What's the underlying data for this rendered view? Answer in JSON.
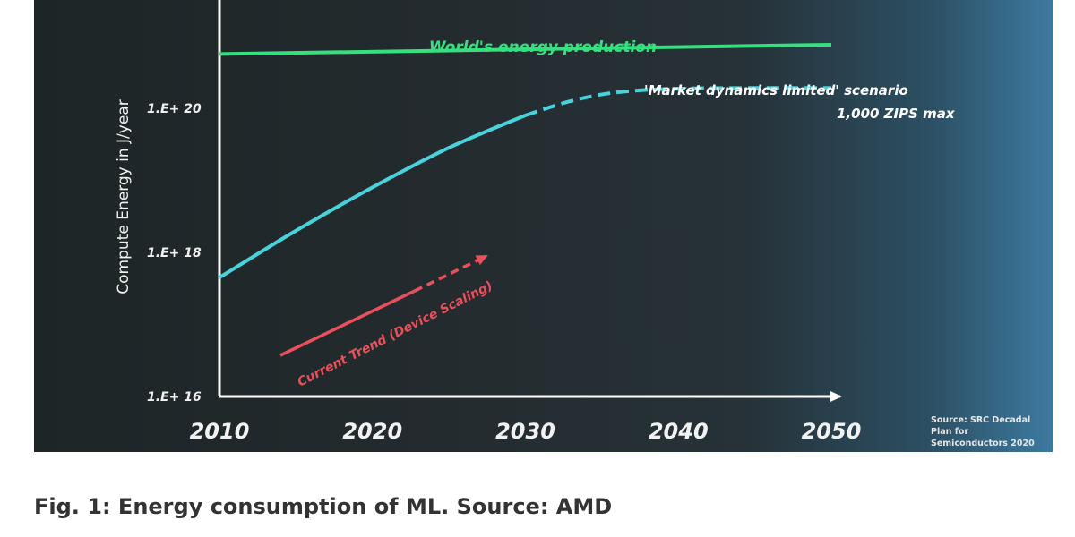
{
  "caption": "Fig. 1: Energy consumption of ML. Source: AMD",
  "chart_data": {
    "type": "line",
    "title": "",
    "xlabel": "",
    "ylabel": "Compute Energy in J/year",
    "x_ticks": [
      "2010",
      "2020",
      "2030",
      "2040",
      "2050"
    ],
    "y_ticks": [
      {
        "value": 16,
        "label": "1.E+ 16"
      },
      {
        "value": 18,
        "label": "1.E+ 18"
      },
      {
        "value": 20,
        "label": "1.E+ 20"
      }
    ],
    "xlim": [
      2010,
      2050
    ],
    "ylim_log10": [
      16,
      21.5
    ],
    "y_scale": "log",
    "grid": false,
    "series": [
      {
        "name": "World's energy production",
        "color": "#35e07e",
        "style": "solid",
        "x": [
          2010,
          2050
        ],
        "y_log10": [
          20.75,
          20.88
        ]
      },
      {
        "name": "",
        "color": "#48d3dc",
        "style": "solid",
        "x": [
          2010,
          2015,
          2020,
          2025,
          2030
        ],
        "y_log10": [
          17.65,
          18.3,
          18.9,
          19.45,
          19.9
        ]
      },
      {
        "name": "'Market dynamics limited' scenario",
        "color": "#48d3dc",
        "style": "dashed",
        "x": [
          2030,
          2033,
          2036,
          2040,
          2045,
          2050
        ],
        "y_log10": [
          19.9,
          20.1,
          20.22,
          20.27,
          20.28,
          20.28
        ]
      }
    ],
    "annotations": [
      {
        "text": "World's energy production",
        "color": "#35e07e"
      },
      {
        "text": "'Market dynamics limited' scenario",
        "color": "#ffffff"
      },
      {
        "text": "1,000 ZIPS max",
        "color": "#ffffff"
      },
      {
        "text": "Current Trend (Device Scaling)",
        "color": "#e8505b"
      }
    ],
    "source_note": [
      "Source: SRC Decadal Plan for",
      "Semiconductors 2020"
    ]
  }
}
